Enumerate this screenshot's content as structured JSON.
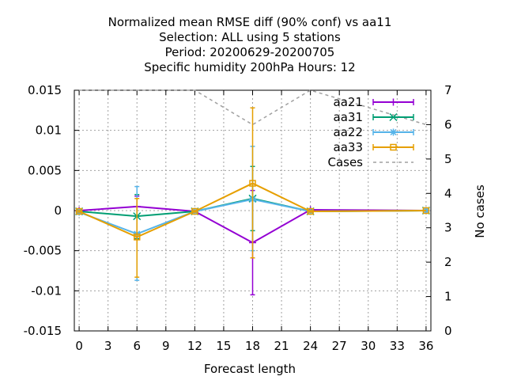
{
  "chart_data": {
    "type": "line",
    "title_lines": [
      "Normalized mean RMSE diff (90% conf) vs aa11",
      "Selection: ALL using     5 stations",
      "Period: 20200629-20200705",
      "Specific humidity 200hPa   Hours:  12"
    ],
    "xlabel": "Forecast length",
    "ylabel": "",
    "y2label": "No cases",
    "xlim": [
      -0.5,
      36.5
    ],
    "ylim": [
      -0.015,
      0.015
    ],
    "y2lim": [
      0,
      7
    ],
    "xticks": [
      0,
      3,
      6,
      9,
      12,
      15,
      18,
      21,
      24,
      27,
      30,
      33,
      36
    ],
    "yticks": [
      -0.015,
      -0.01,
      -0.005,
      0,
      0.005,
      0.01,
      0.015
    ],
    "ytick_labels": [
      "-0.015",
      "-0.01",
      "-0.005",
      "0",
      "0.005",
      "0.01",
      "0.015"
    ],
    "y2ticks": [
      0,
      1,
      2,
      3,
      4,
      5,
      6,
      7
    ],
    "grid": true,
    "legend_position": "top-right",
    "series": [
      {
        "name": "aa21",
        "color": "#9400d3",
        "marker": "plus",
        "axis": "y",
        "x": [
          0,
          6,
          12,
          18,
          24,
          36
        ],
        "y": [
          0,
          0.0005,
          -0.0001,
          -0.004,
          0.0001,
          0
        ],
        "err_low": [
          0,
          -0.0035,
          -0.0002,
          -0.0105,
          0,
          0
        ],
        "err_high": [
          0,
          0.0018,
          0,
          0.0025,
          0.0002,
          0
        ]
      },
      {
        "name": "aa31",
        "color": "#009e73",
        "marker": "x",
        "axis": "y",
        "x": [
          0,
          6,
          12,
          18,
          24,
          36
        ],
        "y": [
          -0.0001,
          -0.0007,
          -0.0001,
          0.0015,
          -0.0001,
          0
        ],
        "err_low": [
          -0.0002,
          -0.0035,
          -0.0002,
          -0.0025,
          -0.0002,
          0
        ],
        "err_high": [
          0,
          0.002,
          0,
          0.0055,
          0,
          0
        ]
      },
      {
        "name": "aa22",
        "color": "#56b4e9",
        "marker": "star",
        "axis": "y",
        "x": [
          0,
          6,
          12,
          18,
          24,
          36
        ],
        "y": [
          -0.0002,
          -0.0029,
          -0.0001,
          0.0014,
          -0.0001,
          0
        ],
        "err_low": [
          -0.0003,
          -0.0087,
          -0.0002,
          -0.005,
          -0.0002,
          0
        ],
        "err_high": [
          0,
          0.003,
          0,
          0.008,
          0,
          0
        ]
      },
      {
        "name": "aa33",
        "color": "#e69f00",
        "marker": "square",
        "axis": "y",
        "x": [
          0,
          6,
          12,
          18,
          24,
          36
        ],
        "y": [
          -0.0001,
          -0.0033,
          -0.0001,
          0.0034,
          -0.0001,
          0
        ],
        "err_low": [
          -0.0002,
          -0.0083,
          -0.0002,
          -0.0059,
          -0.0002,
          0
        ],
        "err_high": [
          0,
          0.0015,
          0,
          0.0128,
          0,
          0
        ]
      },
      {
        "name": "Cases",
        "color": "#a0a0a0",
        "marker": "none",
        "dashed": true,
        "axis": "y2",
        "x": [
          0,
          6,
          12,
          18,
          24,
          36
        ],
        "y": [
          7,
          7,
          7,
          6,
          7,
          6
        ]
      }
    ]
  }
}
